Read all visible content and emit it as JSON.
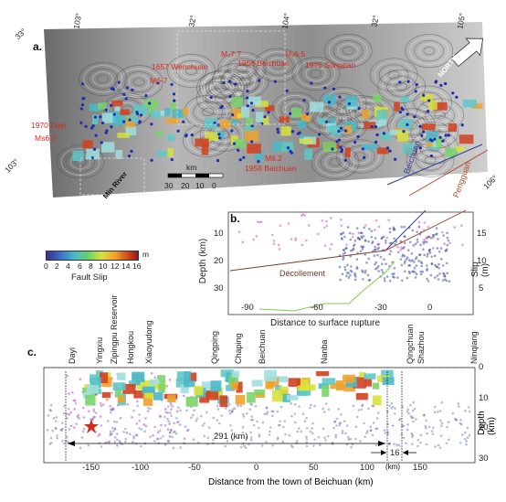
{
  "panel_a": {
    "label": "a.",
    "corner_coords": [
      "103°",
      "32°",
      "104°",
      "32°",
      "105°",
      "33°",
      "106°",
      "103°"
    ],
    "events": [
      {
        "text": "Mₛ7.7"
      },
      {
        "text": "1657 Wenchuan"
      },
      {
        "text": "M6-7"
      },
      {
        "text": "1958 Beichuan"
      },
      {
        "text": "Mₛ6.5"
      },
      {
        "text": "1976 Songpan"
      },
      {
        "text": "1970 Dayi"
      },
      {
        "text": "Ms6.2"
      },
      {
        "text": "M6.2"
      },
      {
        "text": "1958 Beichuan"
      }
    ],
    "north_label": "NORTH",
    "min_river": "Min River",
    "scale_label": "km",
    "scale_ticks": [
      "30",
      "20",
      "10",
      "0"
    ],
    "beichuan": "Beichuan",
    "pengguan": "Pengguan"
  },
  "colorbar": {
    "unit": "m",
    "ticks": [
      "0",
      "2",
      "4",
      "6",
      "8",
      "10",
      "12",
      "14",
      "16"
    ],
    "label": "Fault Slip"
  },
  "panel_b": {
    "label": "b.",
    "ylabel_left": "Depth (km)",
    "ylabel_right": "Slip (m)",
    "xlabel": "Distance to surface rupture",
    "decollement": "Décollement",
    "x_ticks": [
      "-90",
      "-60",
      "-30",
      "0"
    ],
    "y_ticks_left": [
      "10",
      "20",
      "30"
    ],
    "y_ticks_right": [
      "15",
      "10",
      "5"
    ]
  },
  "panel_c": {
    "label": "c.",
    "towns": [
      "Dayi",
      "Yingxiu",
      "Zipingpu Reservoir",
      "Hongkou",
      "Xiaoyudong",
      "Qingping",
      "Chaping",
      "Beichuan",
      "Nanba",
      "Qingchuan",
      "Shazhou",
      "Ninqiang"
    ],
    "xlabel": "Distance from the town of Beichuan (km)",
    "ylabel": "Depth (km)",
    "x_ticks": [
      "-150",
      "-100",
      "-50",
      "0",
      "50",
      "100",
      "150"
    ],
    "y_ticks": [
      "0",
      "10",
      "20",
      "30"
    ],
    "length_291": "291 (km)",
    "length_16": "16",
    "km_unit": "(km)"
  }
}
